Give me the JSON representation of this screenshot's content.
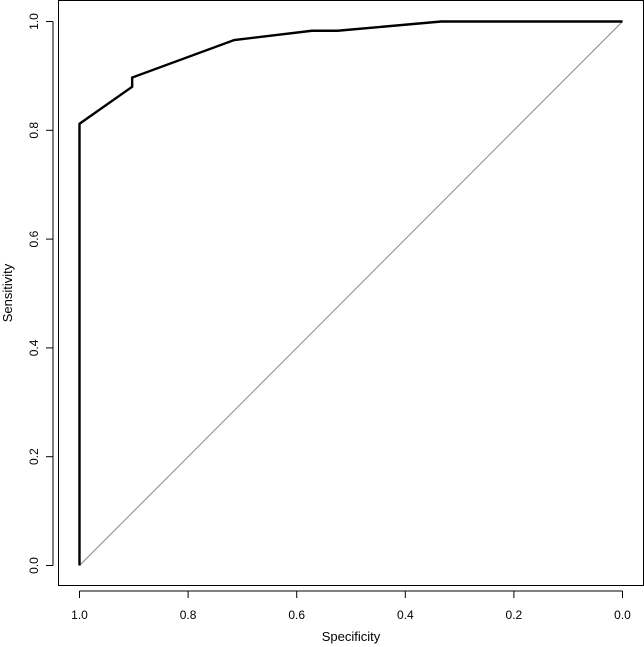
{
  "chart_data": {
    "type": "line",
    "title": "",
    "xlabel": "Specificity",
    "ylabel": "Sensitivity",
    "xlim": [
      1.0,
      0.0
    ],
    "ylim": [
      0.0,
      1.0
    ],
    "x_reversed": true,
    "grid": false,
    "x_ticks": [
      "1.0",
      "0.8",
      "0.6",
      "0.4",
      "0.2",
      "0.0"
    ],
    "y_ticks": [
      "0.0",
      "0.2",
      "0.4",
      "0.6",
      "0.8",
      "1.0"
    ],
    "series": [
      {
        "role": "roc-curve",
        "color": "#000000",
        "points": [
          [
            1.0,
            0.0
          ],
          [
            1.0,
            0.812
          ],
          [
            0.903,
            0.88
          ],
          [
            0.903,
            0.897
          ],
          [
            0.715,
            0.966
          ],
          [
            0.572,
            0.983
          ],
          [
            0.525,
            0.983
          ],
          [
            0.334,
            1.0
          ],
          [
            0.0,
            1.0
          ]
        ]
      },
      {
        "role": "reference-diagonal",
        "color": "#888888",
        "points": [
          [
            1.0,
            0.0
          ],
          [
            0.0,
            1.0
          ]
        ]
      }
    ]
  }
}
